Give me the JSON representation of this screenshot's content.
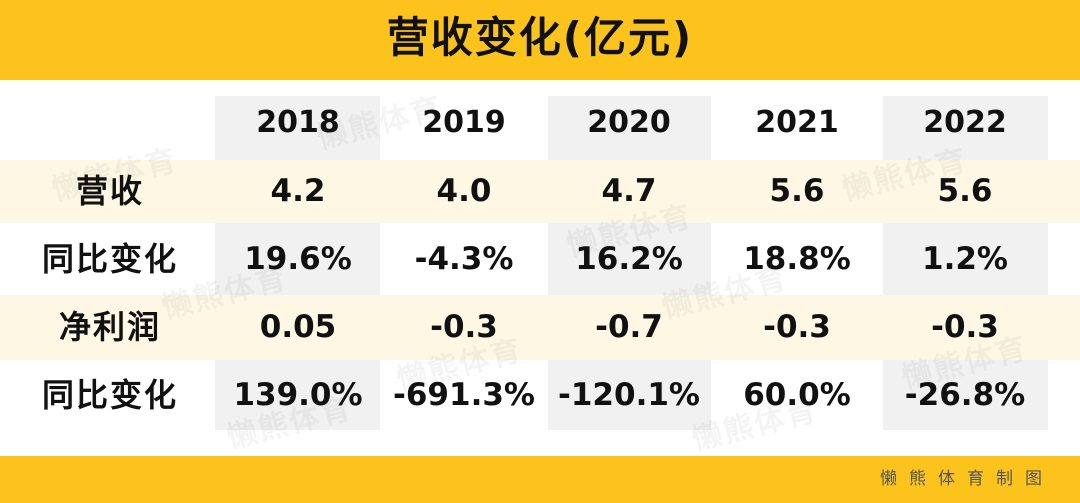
{
  "title": "营收变化(亿元)",
  "watermark": "懒熊体育",
  "credit": "懒熊体育制图",
  "colors": {
    "accent": "#fcc31c",
    "column_shade": "#f1f1f1",
    "row_shade": "#fdf7e4"
  },
  "chart_data": {
    "type": "table",
    "columns": [
      "2018",
      "2019",
      "2020",
      "2021",
      "2022"
    ],
    "rows": [
      {
        "label": "营收",
        "values": [
          "4.2",
          "4.0",
          "4.7",
          "5.6",
          "5.6"
        ]
      },
      {
        "label": "同比变化",
        "values": [
          "19.6%",
          "-4.3%",
          "16.2%",
          "18.8%",
          "1.2%"
        ]
      },
      {
        "label": "净利润",
        "values": [
          "0.05",
          "-0.3",
          "-0.7",
          "-0.3",
          "-0.3"
        ]
      },
      {
        "label": "同比变化",
        "values": [
          "139.0%",
          "-691.3%",
          "-120.1%",
          "60.0%",
          "-26.8%"
        ]
      }
    ]
  }
}
